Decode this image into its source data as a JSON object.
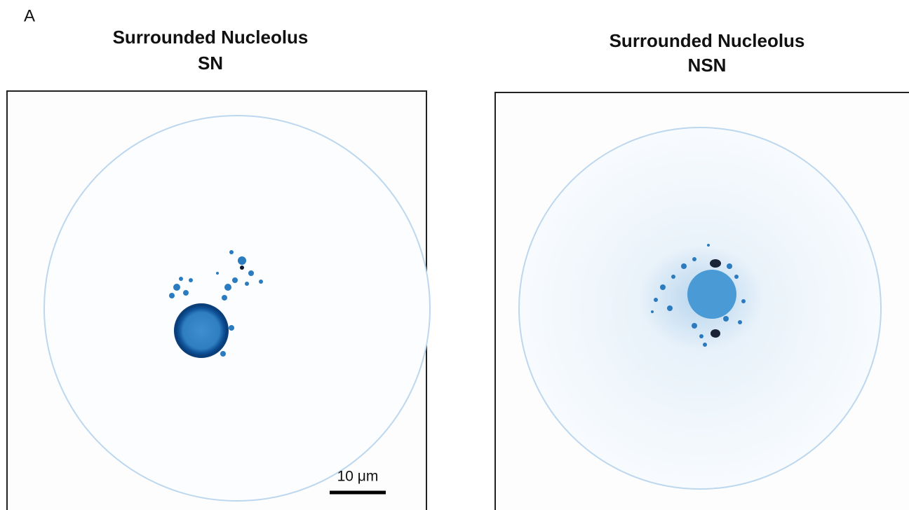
{
  "panel_label": "A",
  "panels": [
    {
      "title": "Surrounded Nucleolus",
      "subtitle": "SN",
      "scale_bar": "10 μm"
    },
    {
      "title": "Surrounded Nucleolus",
      "subtitle": "NSN"
    }
  ]
}
